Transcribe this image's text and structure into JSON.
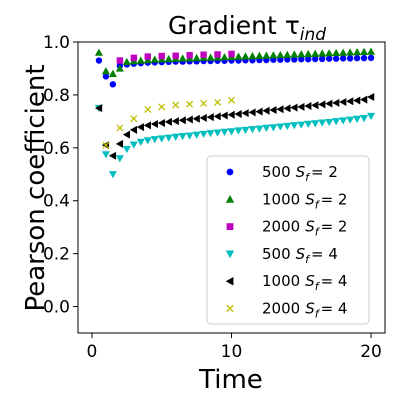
{
  "chart_data": {
    "type": "scatter",
    "title": "Gradient τ",
    "title_sub": "ind",
    "xlabel": "Time",
    "ylabel": "Pearson coefficient",
    "xlim": [
      -1,
      21
    ],
    "ylim": [
      -0.1,
      1.0
    ],
    "xticks": [
      0,
      10,
      20
    ],
    "yticks": [
      0.0,
      0.2,
      0.4,
      0.6,
      0.8,
      1.0
    ],
    "xtick_labels": [
      "0",
      "10",
      "20"
    ],
    "ytick_labels": [
      "0.0",
      "0.2",
      "0.4",
      "0.6",
      "0.8",
      "1.0"
    ],
    "grid": false,
    "legend_position": "lower-right",
    "series": [
      {
        "name": "500 S_f = 2",
        "label_num": "500",
        "label_val": "2",
        "marker": "circle",
        "color": "#0000ff",
        "x": [
          0.5,
          1.0,
          1.5,
          2.0,
          2.5,
          3.0,
          3.5,
          4.0,
          4.5,
          5.0,
          5.5,
          6.0,
          6.5,
          7.0,
          7.5,
          8.0,
          8.5,
          9.0,
          9.5,
          10.0,
          10.5,
          11.0,
          11.5,
          12.0,
          12.5,
          13.0,
          13.5,
          14.0,
          14.5,
          15.0,
          15.5,
          16.0,
          16.5,
          17.0,
          17.5,
          18.0,
          18.5,
          19.0,
          19.5,
          20.0
        ],
        "y": [
          0.93,
          0.87,
          0.84,
          0.91,
          0.915,
          0.918,
          0.92,
          0.922,
          0.923,
          0.924,
          0.925,
          0.926,
          0.926,
          0.927,
          0.927,
          0.928,
          0.928,
          0.929,
          0.929,
          0.93,
          0.93,
          0.931,
          0.931,
          0.932,
          0.932,
          0.933,
          0.933,
          0.934,
          0.934,
          0.935,
          0.935,
          0.936,
          0.936,
          0.937,
          0.937,
          0.938,
          0.938,
          0.939,
          0.939,
          0.94
        ]
      },
      {
        "name": "1000 S_f = 2",
        "label_num": "1000",
        "label_val": "2",
        "marker": "triangle-up",
        "color": "#008000",
        "x": [
          0.5,
          1.0,
          1.5,
          2.0,
          2.5,
          3.0,
          3.5,
          4.0,
          4.5,
          5.0,
          5.5,
          6.0,
          6.5,
          7.0,
          7.5,
          8.0,
          8.5,
          9.0,
          9.5,
          10.0,
          10.5,
          11.0,
          11.5,
          12.0,
          12.5,
          13.0,
          13.5,
          14.0,
          14.5,
          15.0,
          15.5,
          16.0,
          16.5,
          17.0,
          17.5,
          18.0,
          18.5,
          19.0,
          19.5,
          20.0
        ],
        "y": [
          0.96,
          0.89,
          0.88,
          0.9,
          0.925,
          0.928,
          0.93,
          0.932,
          0.934,
          0.935,
          0.936,
          0.937,
          0.938,
          0.939,
          0.94,
          0.941,
          0.941,
          0.942,
          0.943,
          0.944,
          0.945,
          0.946,
          0.947,
          0.948,
          0.949,
          0.95,
          0.951,
          0.952,
          0.953,
          0.954,
          0.955,
          0.956,
          0.957,
          0.958,
          0.959,
          0.96,
          0.961,
          0.962,
          0.963,
          0.964
        ]
      },
      {
        "name": "2000 S_f = 2",
        "label_num": "2000",
        "label_val": "2",
        "marker": "square",
        "color": "#bf00bf",
        "x": [
          2.0,
          3.0,
          4.0,
          5.0,
          6.0,
          7.0,
          8.0,
          9.0,
          10.0
        ],
        "y": [
          0.93,
          0.94,
          0.945,
          0.947,
          0.948,
          0.95,
          0.952,
          0.953,
          0.955
        ]
      },
      {
        "name": "500 S_f = 4",
        "label_num": "500",
        "label_val": "4",
        "marker": "triangle-down",
        "color": "#00bfbf",
        "x": [
          0.5,
          1.0,
          1.5,
          2.0,
          2.5,
          3.0,
          3.5,
          4.0,
          4.5,
          5.0,
          5.5,
          6.0,
          6.5,
          7.0,
          7.5,
          8.0,
          8.5,
          9.0,
          9.5,
          10.0,
          10.5,
          11.0,
          11.5,
          12.0,
          12.5,
          13.0,
          13.5,
          14.0,
          14.5,
          15.0,
          15.5,
          16.0,
          16.5,
          17.0,
          17.5,
          18.0,
          18.5,
          19.0,
          19.5,
          20.0
        ],
        "y": [
          0.75,
          0.575,
          0.5,
          0.56,
          0.595,
          0.612,
          0.622,
          0.628,
          0.632,
          0.635,
          0.638,
          0.641,
          0.644,
          0.646,
          0.649,
          0.652,
          0.655,
          0.657,
          0.66,
          0.662,
          0.665,
          0.667,
          0.67,
          0.672,
          0.675,
          0.677,
          0.68,
          0.682,
          0.685,
          0.687,
          0.69,
          0.692,
          0.695,
          0.697,
          0.7,
          0.703,
          0.706,
          0.709,
          0.712,
          0.72
        ]
      },
      {
        "name": "1000 S_f = 4",
        "label_num": "1000",
        "label_val": "4",
        "marker": "triangle-left",
        "color": "#000000",
        "x": [
          0.5,
          1.0,
          1.5,
          2.0,
          2.5,
          3.0,
          3.5,
          4.0,
          4.5,
          5.0,
          5.5,
          6.0,
          6.5,
          7.0,
          7.5,
          8.0,
          8.5,
          9.0,
          9.5,
          10.0,
          10.5,
          11.0,
          11.5,
          12.0,
          12.5,
          13.0,
          13.5,
          14.0,
          14.5,
          15.0,
          15.5,
          16.0,
          16.5,
          17.0,
          17.5,
          18.0,
          18.5,
          19.0,
          19.5,
          20.0
        ],
        "y": [
          0.75,
          0.61,
          0.57,
          0.615,
          0.65,
          0.668,
          0.678,
          0.685,
          0.69,
          0.694,
          0.698,
          0.701,
          0.704,
          0.707,
          0.71,
          0.713,
          0.716,
          0.719,
          0.722,
          0.725,
          0.728,
          0.731,
          0.734,
          0.737,
          0.74,
          0.743,
          0.746,
          0.749,
          0.752,
          0.755,
          0.758,
          0.761,
          0.764,
          0.767,
          0.77,
          0.773,
          0.776,
          0.779,
          0.782,
          0.792
        ]
      },
      {
        "name": "2000 S_f = 4",
        "label_num": "2000",
        "label_val": "4",
        "marker": "x",
        "color": "#bfbf00",
        "x": [
          1.0,
          2.0,
          3.0,
          4.0,
          5.0,
          6.0,
          7.0,
          8.0,
          9.0,
          10.0
        ],
        "y": [
          0.61,
          0.675,
          0.71,
          0.745,
          0.755,
          0.762,
          0.765,
          0.768,
          0.772,
          0.78
        ]
      }
    ]
  }
}
